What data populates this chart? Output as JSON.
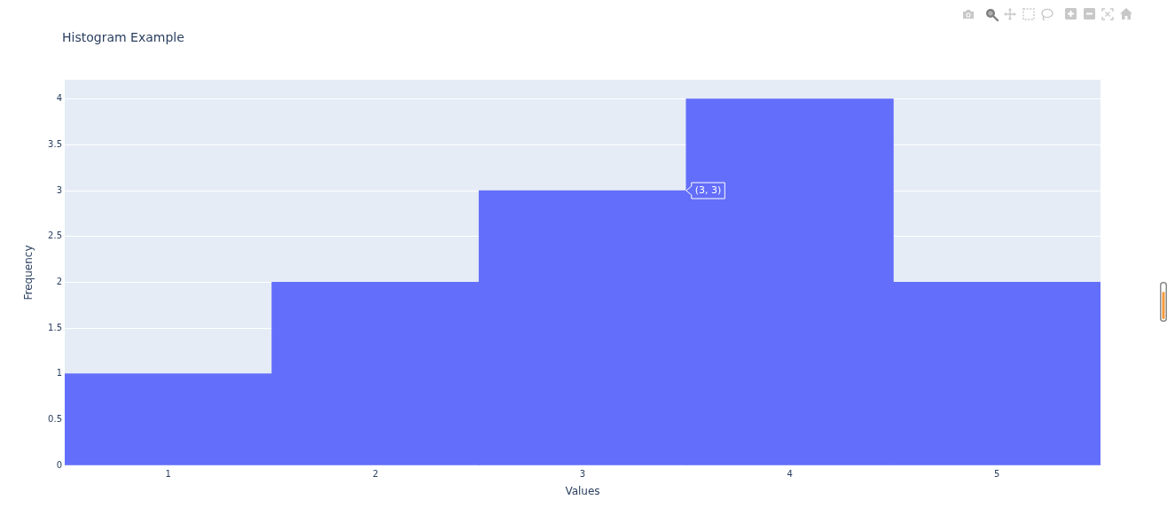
{
  "chart_data": {
    "type": "histogram",
    "title": "Histogram Example",
    "xlabel": "Values",
    "ylabel": "Frequency",
    "bins": [
      0.5,
      1.5,
      2.5,
      3.5,
      4.5,
      5.5
    ],
    "values": [
      1,
      2,
      3,
      4,
      2
    ],
    "color": "#636efa",
    "xlim": [
      0.5,
      5.5
    ],
    "xticks": [
      1,
      2,
      3,
      4,
      5
    ],
    "ylim": [
      0,
      4.21
    ],
    "yticks": [
      0,
      0.5,
      1,
      1.5,
      2,
      2.5,
      3,
      3.5,
      4
    ],
    "grid": "y",
    "annotations": [
      {
        "text": "(3, 3)",
        "x": 3.5,
        "y": 3
      }
    ]
  }
}
